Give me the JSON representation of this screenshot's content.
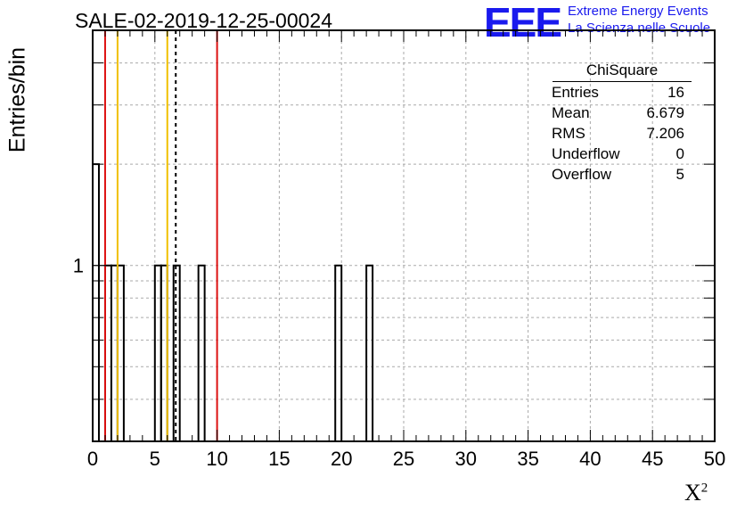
{
  "title": "SALE-02-2019-12-25-00024",
  "logo": {
    "text": "EEE",
    "line1": "Extreme Energy Events",
    "line2": "La Scienza nelle Scuole",
    "color": "#1a1aee"
  },
  "stats": {
    "title": "ChiSquare",
    "rows": [
      {
        "label": "Entries",
        "value": "16"
      },
      {
        "label": "Mean",
        "value": "6.679"
      },
      {
        "label": "RMS",
        "value": "7.206"
      },
      {
        "label": "Underflow",
        "value": "0"
      },
      {
        "label": "Overflow",
        "value": "5"
      }
    ]
  },
  "chart_data": {
    "type": "bar",
    "title": "SALE-02-2019-12-25-00024",
    "xlabel": "X",
    "xlabel_superscript": "2",
    "ylabel": "Entries/bin",
    "xlim": [
      0,
      50
    ],
    "ylim": [
      0.3,
      5
    ],
    "yscale": "log",
    "grid": true,
    "bin_width": 0.5,
    "bins": [
      {
        "x": 0.0,
        "count": 2
      },
      {
        "x": 1.0,
        "count": 1
      },
      {
        "x": 1.5,
        "count": 1
      },
      {
        "x": 2.0,
        "count": 1
      },
      {
        "x": 5.0,
        "count": 1
      },
      {
        "x": 5.5,
        "count": 1
      },
      {
        "x": 6.5,
        "count": 1
      },
      {
        "x": 8.5,
        "count": 1
      },
      {
        "x": 19.5,
        "count": 1
      },
      {
        "x": 22.0,
        "count": 1
      }
    ],
    "xticks": [
      "0",
      "5",
      "10",
      "15",
      "20",
      "25",
      "30",
      "35",
      "40",
      "45",
      "50"
    ],
    "yticks": [
      {
        "value": 1,
        "label": "1"
      }
    ],
    "vlines": [
      {
        "x": 1.0,
        "color": "#dd1111",
        "style": "solid"
      },
      {
        "x": 2.0,
        "color": "#f0c000",
        "style": "solid"
      },
      {
        "x": 6.0,
        "color": "#f0c000",
        "style": "solid"
      },
      {
        "x": 6.679,
        "color": "#000000",
        "style": "dashed"
      },
      {
        "x": 10.0,
        "color": "#dd1111",
        "style": "solid"
      }
    ]
  }
}
